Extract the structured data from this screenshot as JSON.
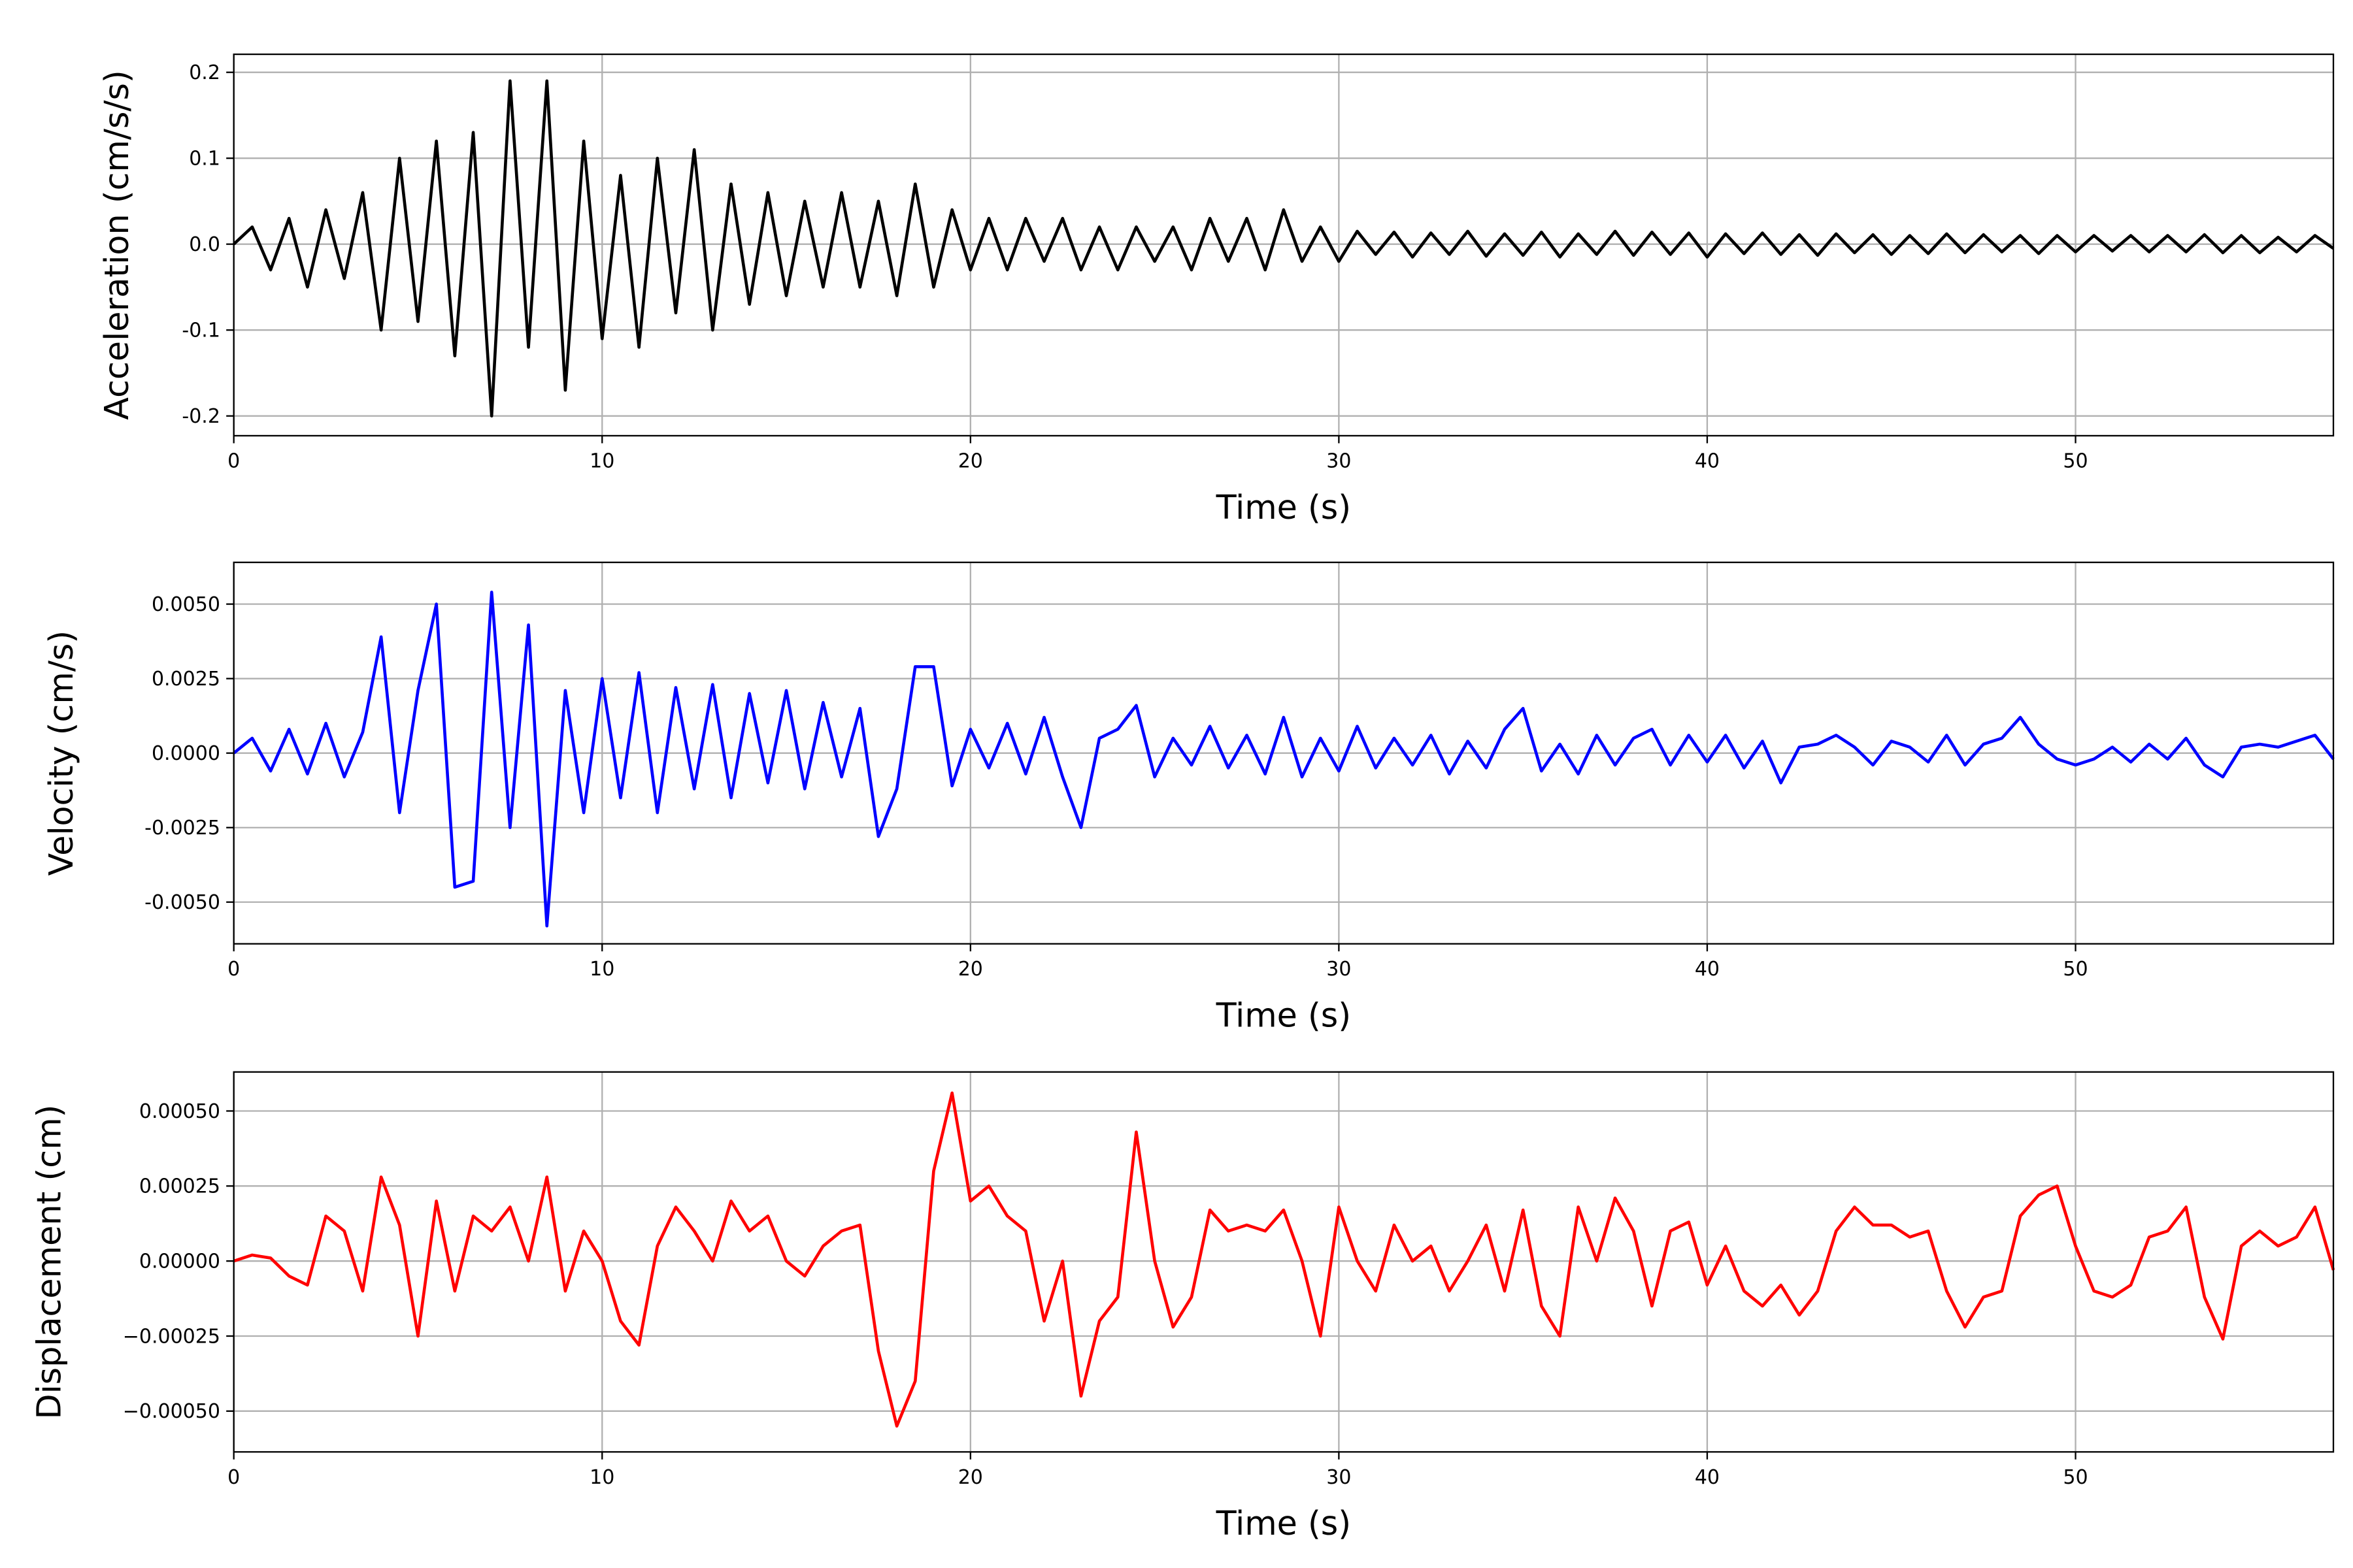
{
  "chart_data": [
    {
      "type": "line",
      "xlabel": "Time (s)",
      "ylabel": "Acceleration (cm/s/s)",
      "grid": true,
      "xlim": [
        0,
        57
      ],
      "xticks": [
        0,
        10,
        20,
        30,
        40,
        50
      ],
      "ylim": [
        -0.223,
        0.221
      ],
      "yticks": [
        -0.2,
        -0.1,
        {
          "value": 0,
          "label": "0.0"
        },
        0.1,
        0.2
      ],
      "x": [
        0,
        0.5,
        1,
        1.5,
        2,
        2.5,
        3,
        3.5,
        4,
        4.5,
        5,
        5.5,
        6,
        6.5,
        7,
        7.5,
        8,
        8.5,
        9,
        9.5,
        10,
        10.5,
        11,
        11.5,
        12,
        12.5,
        13,
        13.5,
        14,
        14.5,
        15,
        15.5,
        16,
        16.5,
        17,
        17.5,
        18,
        18.5,
        19,
        19.5,
        20,
        20.5,
        21,
        21.5,
        22,
        22.5,
        23,
        23.5,
        24,
        24.5,
        25,
        25.5,
        26,
        26.5,
        27,
        27.5,
        28,
        28.5,
        29,
        29.5,
        30,
        30.5,
        31,
        31.5,
        32,
        32.5,
        33,
        33.5,
        34,
        34.5,
        35,
        35.5,
        36,
        36.5,
        37,
        37.5,
        38,
        38.5,
        39,
        39.5,
        40,
        40.5,
        41,
        41.5,
        42,
        42.5,
        43,
        43.5,
        44,
        44.5,
        45,
        45.5,
        46,
        46.5,
        47,
        47.5,
        48,
        48.5,
        49,
        49.5,
        50,
        50.5,
        51,
        51.5,
        52,
        52.5,
        53,
        53.5,
        54,
        54.5,
        55,
        55.5,
        56,
        56.5,
        57
      ],
      "series": [
        {
          "color": "#000000",
          "values": [
            0,
            0.02,
            -0.03,
            0.03,
            -0.05,
            0.04,
            -0.04,
            0.06,
            -0.1,
            0.1,
            -0.09,
            0.12,
            -0.13,
            0.13,
            -0.2,
            0.19,
            -0.12,
            0.19,
            -0.17,
            0.12,
            -0.11,
            0.08,
            -0.12,
            0.1,
            -0.08,
            0.11,
            -0.1,
            0.07,
            -0.07,
            0.06,
            -0.06,
            0.05,
            -0.05,
            0.06,
            -0.05,
            0.05,
            -0.06,
            0.07,
            -0.05,
            0.04,
            -0.03,
            0.03,
            -0.03,
            0.03,
            -0.02,
            0.03,
            -0.03,
            0.02,
            -0.03,
            0.02,
            -0.02,
            0.02,
            -0.03,
            0.03,
            -0.02,
            0.03,
            -0.03,
            0.04,
            -0.02,
            0.02,
            -0.02,
            0.015,
            -0.012,
            0.014,
            -0.015,
            0.013,
            -0.012,
            0.015,
            -0.014,
            0.012,
            -0.013,
            0.014,
            -0.015,
            0.012,
            -0.012,
            0.015,
            -0.013,
            0.014,
            -0.012,
            0.013,
            -0.015,
            0.012,
            -0.011,
            0.013,
            -0.012,
            0.011,
            -0.013,
            0.012,
            -0.01,
            0.011,
            -0.012,
            0.01,
            -0.011,
            0.012,
            -0.01,
            0.011,
            -0.009,
            0.01,
            -0.011,
            0.01,
            -0.009,
            0.01,
            -0.008,
            0.01,
            -0.009,
            0.01,
            -0.009,
            0.011,
            -0.01,
            0.01,
            -0.01,
            0.008,
            -0.009,
            0.01,
            -0.005
          ]
        }
      ]
    },
    {
      "type": "line",
      "xlabel": "Time (s)",
      "ylabel": "Velocity (cm/s)",
      "grid": true,
      "xlim": [
        0,
        57
      ],
      "xticks": [
        0,
        10,
        20,
        30,
        40,
        50
      ],
      "ylim": [
        -0.0064,
        0.0064
      ],
      "yticks": [
        {
          "value": -0.005,
          "label": "-0.0050"
        },
        {
          "value": -0.0025,
          "label": "-0.0025"
        },
        {
          "value": 0,
          "label": "0.0000"
        },
        {
          "value": 0.0025,
          "label": "0.0025"
        },
        {
          "value": 0.005,
          "label": "0.0050"
        }
      ],
      "x": [
        0,
        0.5,
        1,
        1.5,
        2,
        2.5,
        3,
        3.5,
        4,
        4.5,
        5,
        5.5,
        6,
        6.5,
        7,
        7.5,
        8,
        8.5,
        9,
        9.5,
        10,
        10.5,
        11,
        11.5,
        12,
        12.5,
        13,
        13.5,
        14,
        14.5,
        15,
        15.5,
        16,
        16.5,
        17,
        17.5,
        18,
        18.5,
        19,
        19.5,
        20,
        20.5,
        21,
        21.5,
        22,
        22.5,
        23,
        23.5,
        24,
        24.5,
        25,
        25.5,
        26,
        26.5,
        27,
        27.5,
        28,
        28.5,
        29,
        29.5,
        30,
        30.5,
        31,
        31.5,
        32,
        32.5,
        33,
        33.5,
        34,
        34.5,
        35,
        35.5,
        36,
        36.5,
        37,
        37.5,
        38,
        38.5,
        39,
        39.5,
        40,
        40.5,
        41,
        41.5,
        42,
        42.5,
        43,
        43.5,
        44,
        44.5,
        45,
        45.5,
        46,
        46.5,
        47,
        47.5,
        48,
        48.5,
        49,
        49.5,
        50,
        50.5,
        51,
        51.5,
        52,
        52.5,
        53,
        53.5,
        54,
        54.5,
        55,
        55.5,
        56,
        56.5,
        57
      ],
      "series": [
        {
          "color": "#0000ff",
          "values": [
            0,
            0.0005,
            -0.0006,
            0.0008,
            -0.0007,
            0.001,
            -0.0008,
            0.0007,
            0.0039,
            -0.002,
            0.0021,
            0.005,
            -0.0045,
            -0.0043,
            0.0054,
            -0.0025,
            0.0043,
            -0.0058,
            0.0021,
            -0.002,
            0.0025,
            -0.0015,
            0.0027,
            -0.002,
            0.0022,
            -0.0012,
            0.0023,
            -0.0015,
            0.002,
            -0.001,
            0.0021,
            -0.0012,
            0.0017,
            -0.0008,
            0.0015,
            -0.0028,
            -0.0012,
            0.0029,
            0.0029,
            -0.0011,
            0.0008,
            -0.0005,
            0.001,
            -0.0007,
            0.0012,
            -0.0008,
            -0.0025,
            0.0005,
            0.0008,
            0.0016,
            -0.0008,
            0.0005,
            -0.0004,
            0.0009,
            -0.0005,
            0.0006,
            -0.0007,
            0.0012,
            -0.0008,
            0.0005,
            -0.0006,
            0.0009,
            -0.0005,
            0.0005,
            -0.0004,
            0.0006,
            -0.0007,
            0.0004,
            -0.0005,
            0.0008,
            0.0015,
            -0.0006,
            0.0003,
            -0.0007,
            0.0006,
            -0.0004,
            0.0005,
            0.0008,
            -0.0004,
            0.0006,
            -0.0003,
            0.0006,
            -0.0005,
            0.0004,
            -0.001,
            0.0002,
            0.0003,
            0.0006,
            0.0002,
            -0.0004,
            0.0004,
            0.0002,
            -0.0003,
            0.0006,
            -0.0004,
            0.0003,
            0.0005,
            0.0012,
            0.0003,
            -0.0002,
            -0.0004,
            -0.0002,
            0.0002,
            -0.0003,
            0.0003,
            -0.0002,
            0.0005,
            -0.0004,
            -0.0008,
            0.0002,
            0.0003,
            0.0002,
            0.0004,
            0.0006,
            -0.0002
          ]
        }
      ]
    },
    {
      "type": "line",
      "xlabel": "Time (s)",
      "ylabel": "Displacement (cm)",
      "grid": true,
      "xlim": [
        0,
        57
      ],
      "xticks": [
        0,
        10,
        20,
        30,
        40,
        50
      ],
      "ylim": [
        -0.000636,
        0.00063
      ],
      "yticks": [
        {
          "value": -0.0005,
          "label": "−0.00050"
        },
        {
          "value": -0.00025,
          "label": "−0.00025"
        },
        {
          "value": 0,
          "label": "0.00000"
        },
        {
          "value": 0.00025,
          "label": "0.00025"
        },
        {
          "value": 0.0005,
          "label": "0.00050"
        }
      ],
      "x": [
        0,
        0.5,
        1,
        1.5,
        2,
        2.5,
        3,
        3.5,
        4,
        4.5,
        5,
        5.5,
        6,
        6.5,
        7,
        7.5,
        8,
        8.5,
        9,
        9.5,
        10,
        10.5,
        11,
        11.5,
        12,
        12.5,
        13,
        13.5,
        14,
        14.5,
        15,
        15.5,
        16,
        16.5,
        17,
        17.5,
        18,
        18.5,
        19,
        19.5,
        20,
        20.5,
        21,
        21.5,
        22,
        22.5,
        23,
        23.5,
        24,
        24.5,
        25,
        25.5,
        26,
        26.5,
        27,
        27.5,
        28,
        28.5,
        29,
        29.5,
        30,
        30.5,
        31,
        31.5,
        32,
        32.5,
        33,
        33.5,
        34,
        34.5,
        35,
        35.5,
        36,
        36.5,
        37,
        37.5,
        38,
        38.5,
        39,
        39.5,
        40,
        40.5,
        41,
        41.5,
        42,
        42.5,
        43,
        43.5,
        44,
        44.5,
        45,
        45.5,
        46,
        46.5,
        47,
        47.5,
        48,
        48.5,
        49,
        49.5,
        50,
        50.5,
        51,
        51.5,
        52,
        52.5,
        53,
        53.5,
        54,
        54.5,
        55,
        55.5,
        56,
        56.5,
        57
      ],
      "series": [
        {
          "color": "#ff0000",
          "values": [
            0,
            2e-05,
            1e-05,
            -5e-05,
            -8e-05,
            0.00015,
            0.0001,
            -0.0001,
            0.00028,
            0.00012,
            -0.00025,
            0.0002,
            -0.0001,
            0.00015,
            0.0001,
            0.00018,
            0,
            0.00028,
            -0.0001,
            0.0001,
            0,
            -0.0002,
            -0.00028,
            5e-05,
            0.00018,
            0.0001,
            0,
            0.0002,
            0.0001,
            0.00015,
            0,
            -5e-05,
            5e-05,
            0.0001,
            0.00012,
            -0.0003,
            -0.00055,
            -0.0004,
            0.0003,
            0.00056,
            0.0002,
            0.00025,
            0.00015,
            0.0001,
            -0.0002,
            0,
            -0.00045,
            -0.0002,
            -0.00012,
            0.00043,
            0,
            -0.00022,
            -0.00012,
            0.00017,
            0.0001,
            0.00012,
            0.0001,
            0.00017,
            0,
            -0.00025,
            0.00018,
            0,
            -0.0001,
            0.00012,
            0,
            5e-05,
            -0.0001,
            0,
            0.00012,
            -0.0001,
            0.00017,
            -0.00015,
            -0.00025,
            0.00018,
            0,
            0.00021,
            0.0001,
            -0.00015,
            0.0001,
            0.00013,
            -8e-05,
            5e-05,
            -0.0001,
            -0.00015,
            -8e-05,
            -0.00018,
            -0.0001,
            0.0001,
            0.00018,
            0.00012,
            0.00012,
            8e-05,
            0.0001,
            -0.0001,
            -0.00022,
            -0.00012,
            -0.0001,
            0.00015,
            0.00022,
            0.00025,
            5e-05,
            -0.0001,
            -0.00012,
            -8e-05,
            8e-05,
            0.0001,
            0.00018,
            -0.00012,
            -0.00026,
            5e-05,
            0.0001,
            5e-05,
            8e-05,
            0.00018,
            -3e-05
          ]
        }
      ]
    }
  ]
}
